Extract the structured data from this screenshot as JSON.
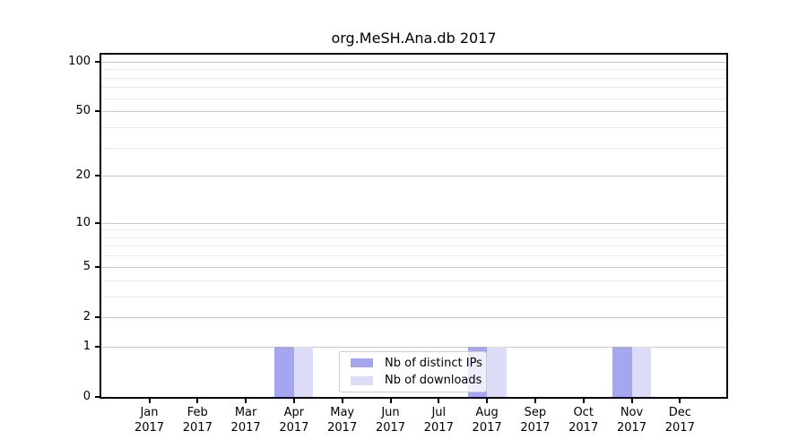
{
  "title": "org.MeSH.Ana.db 2017",
  "chart_data": {
    "type": "bar",
    "title": "org.MeSH.Ana.db 2017",
    "categories": [
      "Jan 2017",
      "Feb 2017",
      "Mar 2017",
      "Apr 2017",
      "May 2017",
      "Jun 2017",
      "Jul 2017",
      "Aug 2017",
      "Sep 2017",
      "Oct 2017",
      "Nov 2017",
      "Dec 2017"
    ],
    "months": [
      "Jan",
      "Feb",
      "Mar",
      "Apr",
      "May",
      "Jun",
      "Jul",
      "Aug",
      "Sep",
      "Oct",
      "Nov",
      "Dec"
    ],
    "year": "2017",
    "series": [
      {
        "name": "Nb of distinct IPs",
        "color": "#a5a5f0",
        "values": [
          0,
          0,
          0,
          1,
          0,
          0,
          0,
          1,
          0,
          0,
          1,
          0
        ]
      },
      {
        "name": "Nb of downloads",
        "color": "#dcdcf8",
        "values": [
          0,
          0,
          0,
          1,
          0,
          0,
          0,
          1,
          0,
          0,
          1,
          0
        ]
      }
    ],
    "y_axis": {
      "scale": "log1p",
      "ticks": [
        0,
        1,
        2,
        5,
        10,
        20,
        50,
        100
      ],
      "minor_gridlines": [
        3,
        4,
        6,
        7,
        8,
        9,
        30,
        40,
        60,
        70,
        80,
        90
      ],
      "ylim": [
        0,
        110
      ]
    },
    "xlabel": "",
    "ylabel": "",
    "grid": true,
    "legend": {
      "position": "bottom-center",
      "entries": [
        "Nb of distinct IPs",
        "Nb of downloads"
      ]
    }
  },
  "colors": {
    "bar_distinct_ips": "#a5a5f0",
    "bar_downloads": "#dcdcf8",
    "grid_major": "#c8c8c8",
    "grid_minor": "#e9e9e9",
    "spine": "#000000",
    "legend_border": "#cccccc",
    "background": "#ffffff",
    "text": "#000000"
  }
}
